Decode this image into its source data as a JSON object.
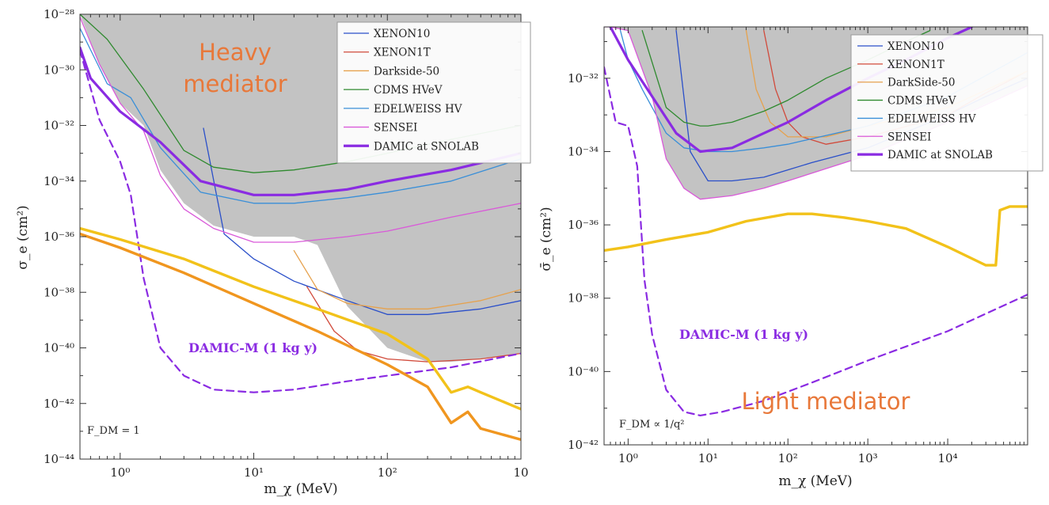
{
  "colors": {
    "XENON10": "#2a4fc9",
    "XENON1T": "#d14a3b",
    "DarkSide-50": "#e6a24e",
    "CDMS HVeV": "#2f8a2f",
    "EDELWEISS HV": "#3a8fd8",
    "SENSEI": "#d95ad9",
    "DAMIC at SNOLAB": "#8a2be2",
    "DAMIC-M": "#8a2be2",
    "freeze-in-yellow": "#f2c21a",
    "freeze-in-orange": "#f0961f",
    "excluded-fill": "#c3c3c3",
    "mediator-label": "#e8783a"
  },
  "chart_data": [
    {
      "type": "line",
      "title": "",
      "xlabel": "m_χ (MeV)",
      "ylabel": "σ_e (cm²)",
      "xscale": "log",
      "yscale": "log",
      "xlim": [
        0.5,
        1000
      ],
      "ylim": [
        -44,
        -28
      ],
      "y_values_are": "log10 of cross section in cm²",
      "x_tick_labels": [
        {
          "x": 1,
          "label": "10⁰"
        },
        {
          "x": 10,
          "label": "10¹"
        },
        {
          "x": 100,
          "label": "10²"
        },
        {
          "x": 1000,
          "label": "10"
        }
      ],
      "y_tick_labels": [
        {
          "y": -28,
          "label": "10⁻²⁸"
        },
        {
          "y": -30,
          "label": "10⁻³⁰"
        },
        {
          "y": -32,
          "label": "10⁻³²"
        },
        {
          "y": -34,
          "label": "10⁻³⁴"
        },
        {
          "y": -36,
          "label": "10⁻³⁶"
        },
        {
          "y": -38,
          "label": "10⁻³⁸"
        },
        {
          "y": -40,
          "label": "10⁻⁴⁰"
        },
        {
          "y": -42,
          "label": "10⁻⁴²"
        },
        {
          "y": -44,
          "label": "10⁻⁴⁴"
        }
      ],
      "legend_position": "top-right",
      "legend": [
        "XENON10",
        "XENON1T",
        "Darkside-50",
        "CDMS HVeV",
        "EDELWEISS HV",
        "SENSEI",
        "DAMIC at SNOLAB"
      ],
      "texts": {
        "mediator_line1": "Heavy",
        "mediator_line2": "mediator",
        "damicm": "DAMIC-M (1 kg y)",
        "fdm": "F_DM = 1"
      },
      "excluded_region": {
        "x": [
          0.5,
          0.7,
          1,
          1.5,
          2,
          3,
          5,
          10,
          20,
          30,
          50,
          100,
          200,
          300,
          500,
          1000
        ],
        "y": [
          -28,
          -29.8,
          -31.2,
          -32.0,
          -33.6,
          -34.8,
          -35.6,
          -36.0,
          -36.0,
          -36.3,
          -38.5,
          -40.0,
          -40.5,
          -40.5,
          -40.4,
          -40.2
        ]
      },
      "series": [
        {
          "name": "XENON10",
          "x": [
            4.2,
            6,
            10,
            20,
            50,
            100,
            200,
            500,
            1000
          ],
          "y": [
            -32.1,
            -35.9,
            -36.8,
            -37.6,
            -38.3,
            -38.8,
            -38.8,
            -38.6,
            -38.3
          ]
        },
        {
          "name": "XENON1T",
          "x": [
            25,
            40,
            60,
            100,
            200,
            500,
            1000
          ],
          "y": [
            -37.8,
            -39.4,
            -40.1,
            -40.4,
            -40.5,
            -40.4,
            -40.2
          ]
        },
        {
          "name": "Darkside-50",
          "x": [
            20,
            30,
            50,
            100,
            200,
            500,
            1000
          ],
          "y": [
            -36.5,
            -37.9,
            -38.4,
            -38.6,
            -38.6,
            -38.3,
            -37.9
          ]
        },
        {
          "name": "CDMS HVeV",
          "x": [
            0.5,
            0.8,
            1.5,
            3,
            5,
            10,
            20,
            50,
            100,
            300,
            1000
          ],
          "y": [
            -28,
            -28.9,
            -30.7,
            -32.9,
            -33.5,
            -33.7,
            -33.6,
            -33.3,
            -33.0,
            -32.5,
            -32.0
          ]
        },
        {
          "name": "EDELWEISS HV",
          "x": [
            0.5,
            0.8,
            1.2,
            2,
            4,
            10,
            20,
            50,
            100,
            300,
            1000
          ],
          "y": [
            -28.5,
            -30.5,
            -31.0,
            -32.8,
            -34.4,
            -34.8,
            -34.8,
            -34.6,
            -34.4,
            -34.0,
            -33.2
          ]
        },
        {
          "name": "SENSEI",
          "x": [
            0.5,
            0.7,
            1,
            1.5,
            2,
            3,
            5,
            10,
            20,
            50,
            100,
            300,
            1000
          ],
          "y": [
            -28.1,
            -29.8,
            -31.2,
            -32.2,
            -33.8,
            -35.0,
            -35.7,
            -36.2,
            -36.2,
            -36.0,
            -35.8,
            -35.3,
            -34.8
          ]
        },
        {
          "name": "DAMIC at SNOLAB",
          "x": [
            0.5,
            0.6,
            1,
            2,
            4,
            10,
            20,
            50,
            100,
            300,
            1000
          ],
          "y": [
            -29.2,
            -30.3,
            -31.5,
            -32.6,
            -34.0,
            -34.5,
            -34.5,
            -34.3,
            -34.0,
            -33.6,
            -33.0
          ]
        },
        {
          "name": "DAMIC-M (1 kg y)",
          "x": [
            0.5,
            0.7,
            1,
            1.2,
            1.5,
            2,
            3,
            5,
            10,
            20,
            50,
            100,
            300,
            1000
          ],
          "y": [
            -29.3,
            -31.8,
            -33.3,
            -34.5,
            -37.5,
            -40.0,
            -41.0,
            -41.5,
            -41.6,
            -41.5,
            -41.2,
            -41.0,
            -40.7,
            -40.2
          ]
        },
        {
          "x": [
            0.5,
            1,
            3,
            10,
            30,
            100,
            200,
            300,
            400,
            500,
            1000
          ],
          "y": [
            -35.7,
            -36.1,
            -36.8,
            -37.8,
            -38.6,
            -39.5,
            -40.4,
            -41.6,
            -41.4,
            -41.6,
            -42.2
          ]
        },
        {
          "x": [
            0.5,
            1,
            3,
            10,
            30,
            100,
            200,
            300,
            400,
            500,
            1000
          ],
          "y": [
            -35.9,
            -36.4,
            -37.3,
            -38.4,
            -39.4,
            -40.6,
            -41.4,
            -42.7,
            -42.3,
            -42.9,
            -43.3
          ]
        }
      ]
    },
    {
      "type": "line",
      "title": "",
      "xlabel": "m_χ (MeV)",
      "ylabel": "σ̄_e (cm²)",
      "xscale": "log",
      "yscale": "log",
      "xlim": [
        0.5,
        100000
      ],
      "ylim": [
        -42,
        -30.6
      ],
      "y_values_are": "log10 of cross section in cm²",
      "x_tick_labels": [
        {
          "x": 1,
          "label": "10⁰"
        },
        {
          "x": 10,
          "label": "10¹"
        },
        {
          "x": 100,
          "label": "10²"
        },
        {
          "x": 1000,
          "label": "10³"
        },
        {
          "x": 10000,
          "label": "10⁴"
        }
      ],
      "y_tick_labels": [
        {
          "y": -32,
          "label": "10⁻³²"
        },
        {
          "y": -34,
          "label": "10⁻³⁴"
        },
        {
          "y": -36,
          "label": "10⁻³⁶"
        },
        {
          "y": -38,
          "label": "10⁻³⁸"
        },
        {
          "y": -40,
          "label": "10⁻⁴⁰"
        },
        {
          "y": -42,
          "label": "10⁻⁴²"
        }
      ],
      "legend_position": "top-right",
      "legend": [
        "XENON10",
        "XENON1T",
        "DarkSide-50",
        "CDMS HVeV",
        "EDELWEISS HV",
        "SENSEI",
        "DAMIC at SNOLAB"
      ],
      "texts": {
        "mediator": "Light mediator",
        "damicm": "DAMIC-M (1 kg y)",
        "fdm": "F_DM ∝ 1/q²"
      },
      "excluded_region": {
        "x": [
          0.5,
          0.6,
          1,
          2,
          3,
          5,
          8,
          20,
          50,
          100,
          200,
          1000,
          10000,
          30000,
          100000
        ],
        "y": [
          -30.6,
          -30.6,
          -30.7,
          -32.5,
          -34.2,
          -35.0,
          -35.3,
          -35.2,
          -35.0,
          -34.8,
          -34.6,
          -34.1,
          -33.2,
          -32.7,
          -32.2
        ]
      },
      "series": [
        {
          "name": "XENON10",
          "x": [
            4,
            6,
            10,
            20,
            50,
            100,
            200,
            1000,
            10000,
            30000,
            100000
          ],
          "y": [
            -30.7,
            -34.0,
            -34.8,
            -34.8,
            -34.7,
            -34.5,
            -34.3,
            -33.9,
            -33.0,
            -32.5,
            -32.0
          ]
        },
        {
          "name": "XENON1T",
          "x": [
            50,
            70,
            100,
            150,
            300,
            1000,
            10000,
            30000,
            100000
          ],
          "y": [
            -30.7,
            -32.3,
            -33.2,
            -33.6,
            -33.8,
            -33.6,
            -33.0,
            -32.4,
            -31.8
          ]
        },
        {
          "name": "DarkSide-50",
          "x": [
            30,
            40,
            60,
            100,
            300,
            1000,
            10000,
            100000
          ],
          "y": [
            -30.7,
            -32.3,
            -33.2,
            -33.6,
            -33.6,
            -33.3,
            -32.8,
            -31.8
          ]
        },
        {
          "name": "CDMS HVeV",
          "x": [
            1.5,
            3,
            5,
            8,
            10,
            20,
            50,
            100,
            300,
            1000,
            3000,
            6000
          ],
          "y": [
            -30.7,
            -32.8,
            -33.2,
            -33.3,
            -33.3,
            -33.2,
            -32.9,
            -32.6,
            -32.0,
            -31.5,
            -31.0,
            -30.7
          ]
        },
        {
          "name": "EDELWEISS HV",
          "x": [
            0.8,
            1,
            1.5,
            2,
            3,
            5,
            10,
            20,
            50,
            100,
            1000,
            10000,
            100000
          ],
          "y": [
            -30.7,
            -31.5,
            -32.3,
            -32.8,
            -33.5,
            -33.9,
            -34.0,
            -34.0,
            -33.9,
            -33.8,
            -33.3,
            -32.5,
            -31.3
          ]
        },
        {
          "name": "SENSEI",
          "x": [
            0.5,
            0.6,
            1,
            2,
            3,
            5,
            8,
            20,
            50,
            100,
            1000,
            10000,
            100000
          ],
          "y": [
            -30.6,
            -30.6,
            -30.7,
            -32.5,
            -34.2,
            -35.0,
            -35.3,
            -35.2,
            -35.0,
            -34.8,
            -34.1,
            -33.2,
            -32.2
          ]
        },
        {
          "name": "DAMIC at SNOLAB",
          "x": [
            0.6,
            1,
            2,
            4,
            8,
            20,
            50,
            100,
            300,
            1000,
            3000,
            10000,
            20000
          ],
          "y": [
            -30.6,
            -31.5,
            -32.5,
            -33.5,
            -34.0,
            -33.9,
            -33.5,
            -33.2,
            -32.6,
            -32.0,
            -31.5,
            -30.9,
            -30.6
          ]
        },
        {
          "name": "DAMIC-M (1 kg y)",
          "x": [
            0.5,
            0.7,
            1,
            1.3,
            1.6,
            2,
            3,
            5,
            8,
            15,
            50,
            200,
            1000,
            10000,
            100000
          ],
          "y": [
            -31.7,
            -33.2,
            -33.3,
            -34.4,
            -37.5,
            -39.0,
            -40.5,
            -41.1,
            -41.2,
            -41.1,
            -40.8,
            -40.3,
            -39.7,
            -38.9,
            -37.9
          ]
        },
        {
          "x": [
            0.5,
            1,
            3,
            10,
            30,
            100,
            200,
            500,
            1000,
            3000,
            10000,
            30000,
            40000,
            45000,
            60000,
            100000
          ],
          "y": [
            -36.7,
            -36.6,
            -36.4,
            -36.2,
            -35.9,
            -35.7,
            -35.7,
            -35.8,
            -35.9,
            -36.1,
            -36.6,
            -37.1,
            -37.1,
            -35.6,
            -35.5,
            -35.5
          ]
        }
      ]
    }
  ]
}
